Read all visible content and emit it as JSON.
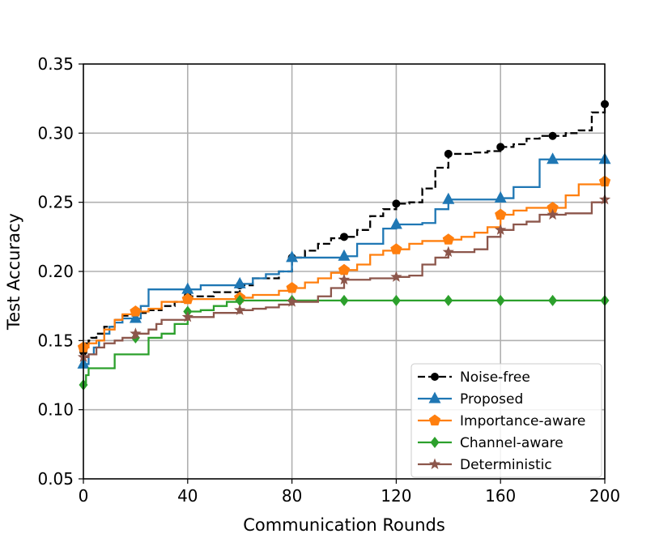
{
  "chart_data": {
    "type": "line",
    "xlabel": "Communication Rounds",
    "ylabel": "Test Accuracy",
    "xlim": [
      0,
      200
    ],
    "ylim": [
      0.05,
      0.35
    ],
    "xticks": [
      0,
      40,
      80,
      120,
      160,
      200
    ],
    "xtick_labels": [
      "0",
      "40",
      "80",
      "120",
      "160",
      "200"
    ],
    "yticks": [
      0.05,
      0.1,
      0.15,
      0.2,
      0.25,
      0.3,
      0.35
    ],
    "ytick_labels": [
      "0.05",
      "0.10",
      "0.15",
      "0.20",
      "0.25",
      "0.30",
      "0.35"
    ],
    "grid": true,
    "legend_position": "lower-right",
    "series": [
      {
        "name": "Noise-free",
        "color": "#000000",
        "dash": true,
        "marker": "circle",
        "x": [
          0,
          1,
          2,
          3,
          5,
          8,
          12,
          15,
          20,
          25,
          30,
          35,
          40,
          50,
          60,
          65,
          75,
          80,
          85,
          90,
          95,
          100,
          105,
          110,
          115,
          120,
          125,
          130,
          135,
          140,
          145,
          150,
          155,
          160,
          165,
          170,
          175,
          180,
          185,
          190,
          195,
          200
        ],
        "y": [
          0.142,
          0.148,
          0.15,
          0.152,
          0.155,
          0.16,
          0.165,
          0.168,
          0.17,
          0.172,
          0.175,
          0.178,
          0.182,
          0.185,
          0.19,
          0.195,
          0.2,
          0.21,
          0.215,
          0.22,
          0.224,
          0.225,
          0.23,
          0.24,
          0.245,
          0.249,
          0.25,
          0.26,
          0.275,
          0.285,
          0.285,
          0.286,
          0.287,
          0.29,
          0.292,
          0.296,
          0.298,
          0.298,
          0.3,
          0.302,
          0.315,
          0.321
        ],
        "marker_x": [
          0,
          20,
          40,
          60,
          80,
          100,
          120,
          140,
          160,
          180,
          200
        ],
        "marker_y": [
          0.142,
          0.17,
          0.182,
          0.19,
          0.21,
          0.225,
          0.249,
          0.285,
          0.29,
          0.298,
          0.321
        ]
      },
      {
        "name": "Proposed",
        "color": "#1f77b4",
        "dash": false,
        "marker": "triangle",
        "x": [
          0,
          2,
          4,
          6,
          8,
          10,
          12,
          15,
          20,
          22,
          25,
          40,
          45,
          55,
          60,
          65,
          70,
          75,
          80,
          90,
          100,
          105,
          115,
          120,
          130,
          135,
          140,
          150,
          155,
          160,
          165,
          175,
          180,
          195,
          200
        ],
        "y": [
          0.133,
          0.14,
          0.145,
          0.15,
          0.155,
          0.16,
          0.163,
          0.166,
          0.166,
          0.175,
          0.187,
          0.187,
          0.19,
          0.19,
          0.191,
          0.195,
          0.198,
          0.2,
          0.21,
          0.21,
          0.211,
          0.22,
          0.231,
          0.234,
          0.235,
          0.245,
          0.252,
          0.252,
          0.252,
          0.253,
          0.261,
          0.281,
          0.281,
          0.281,
          0.281
        ],
        "marker_x": [
          0,
          20,
          40,
          60,
          80,
          100,
          120,
          140,
          160,
          180,
          200
        ],
        "marker_y": [
          0.133,
          0.166,
          0.187,
          0.191,
          0.21,
          0.211,
          0.234,
          0.252,
          0.253,
          0.281,
          0.281
        ]
      },
      {
        "name": "Importance-aware",
        "color": "#ff7f0e",
        "dash": false,
        "marker": "pentagon",
        "x": [
          0,
          2,
          5,
          8,
          12,
          15,
          20,
          25,
          30,
          40,
          50,
          60,
          65,
          75,
          80,
          85,
          90,
          95,
          100,
          105,
          110,
          115,
          120,
          125,
          130,
          140,
          145,
          150,
          155,
          160,
          165,
          170,
          175,
          180,
          185,
          190,
          200
        ],
        "y": [
          0.145,
          0.148,
          0.15,
          0.158,
          0.165,
          0.169,
          0.171,
          0.173,
          0.178,
          0.18,
          0.18,
          0.181,
          0.183,
          0.186,
          0.188,
          0.192,
          0.195,
          0.199,
          0.201,
          0.205,
          0.212,
          0.215,
          0.216,
          0.22,
          0.222,
          0.223,
          0.225,
          0.228,
          0.232,
          0.241,
          0.244,
          0.246,
          0.246,
          0.246,
          0.255,
          0.263,
          0.265
        ],
        "marker_x": [
          0,
          20,
          40,
          60,
          80,
          100,
          120,
          140,
          160,
          180,
          200
        ],
        "marker_y": [
          0.145,
          0.171,
          0.18,
          0.181,
          0.188,
          0.201,
          0.216,
          0.223,
          0.241,
          0.246,
          0.265
        ]
      },
      {
        "name": "Channel-aware",
        "color": "#2ca02c",
        "dash": false,
        "marker": "diamond",
        "x": [
          0,
          1,
          2,
          10,
          12,
          25,
          30,
          35,
          40,
          45,
          50,
          55,
          60,
          70,
          80,
          100,
          120,
          140,
          160,
          180,
          200
        ],
        "y": [
          0.118,
          0.125,
          0.13,
          0.13,
          0.14,
          0.152,
          0.155,
          0.162,
          0.171,
          0.172,
          0.175,
          0.178,
          0.179,
          0.179,
          0.179,
          0.179,
          0.179,
          0.179,
          0.179,
          0.179,
          0.179
        ],
        "marker_x": [
          0,
          20,
          40,
          60,
          80,
          100,
          120,
          140,
          160,
          180,
          200
        ],
        "marker_y": [
          0.118,
          0.152,
          0.171,
          0.179,
          0.179,
          0.179,
          0.179,
          0.179,
          0.179,
          0.179,
          0.179
        ]
      },
      {
        "name": "Deterministic",
        "color": "#8c564b",
        "dash": false,
        "marker": "star",
        "x": [
          0,
          2,
          5,
          8,
          12,
          15,
          20,
          25,
          28,
          30,
          40,
          50,
          60,
          65,
          70,
          75,
          80,
          90,
          95,
          100,
          110,
          120,
          125,
          130,
          135,
          140,
          150,
          155,
          160,
          165,
          170,
          175,
          180,
          185,
          195,
          200
        ],
        "y": [
          0.138,
          0.14,
          0.145,
          0.148,
          0.15,
          0.152,
          0.155,
          0.158,
          0.162,
          0.165,
          0.167,
          0.17,
          0.172,
          0.173,
          0.174,
          0.176,
          0.178,
          0.182,
          0.188,
          0.194,
          0.195,
          0.196,
          0.197,
          0.205,
          0.21,
          0.214,
          0.216,
          0.225,
          0.23,
          0.234,
          0.236,
          0.241,
          0.241,
          0.242,
          0.25,
          0.252
        ],
        "marker_x": [
          0,
          20,
          40,
          60,
          80,
          100,
          120,
          140,
          160,
          180,
          200
        ],
        "marker_y": [
          0.138,
          0.155,
          0.167,
          0.172,
          0.178,
          0.194,
          0.196,
          0.214,
          0.23,
          0.241,
          0.252
        ]
      }
    ]
  }
}
